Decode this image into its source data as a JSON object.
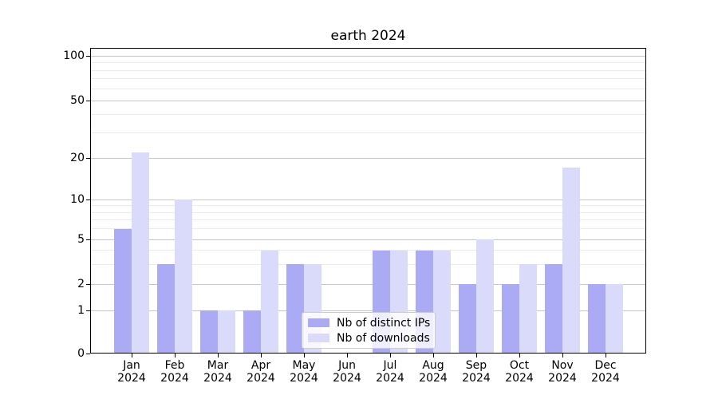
{
  "title": "earth 2024",
  "chart_data": {
    "type": "bar",
    "title": "earth 2024",
    "categories": [
      "Jan",
      "Feb",
      "Mar",
      "Apr",
      "May",
      "Jun",
      "Jul",
      "Aug",
      "Sep",
      "Oct",
      "Nov",
      "Dec"
    ],
    "category_year": "2024",
    "series": [
      {
        "name": "Nb of distinct IPs",
        "color": "#aaaaf5",
        "values": [
          6,
          3,
          1,
          1,
          3,
          0,
          4,
          4,
          2,
          2,
          3,
          2
        ]
      },
      {
        "name": "Nb of downloads",
        "color": "#dadafa",
        "values": [
          22,
          10,
          1,
          4,
          3,
          0,
          4,
          4,
          5,
          3,
          17,
          2
        ]
      }
    ],
    "xlabel": "",
    "ylabel": "",
    "yaxis": {
      "scale": "symlog",
      "major_ticks": [
        0,
        1,
        2,
        5,
        10,
        20,
        50,
        100
      ],
      "minor_ticks": [
        3,
        4,
        6,
        7,
        8,
        9,
        30,
        40,
        60,
        70,
        80,
        90
      ],
      "ylim": [
        0,
        114
      ]
    },
    "grid": true,
    "legend": {
      "position": "lower center",
      "items": [
        "Nb of distinct IPs",
        "Nb of downloads"
      ]
    }
  },
  "colors": {
    "major_grid": "#c6c6c6",
    "minor_grid": "#ebebeb",
    "spine": "#000000",
    "legend_border": "#cccccc",
    "text": "#000000"
  }
}
